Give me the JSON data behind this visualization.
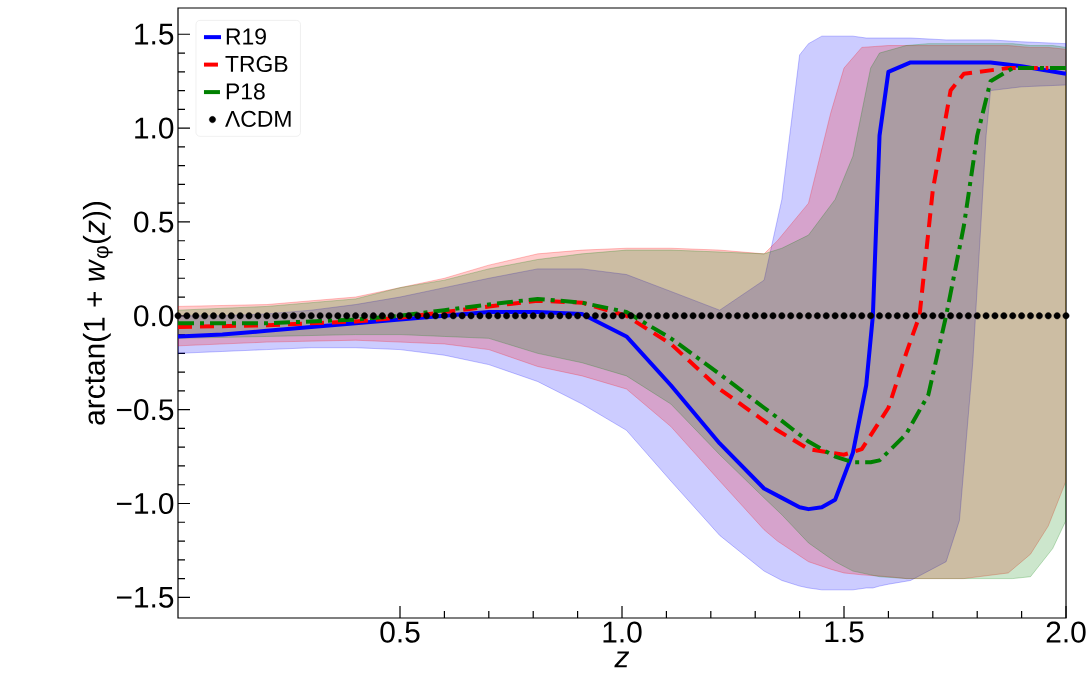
{
  "chart_data": {
    "type": "line",
    "xlabel": "z",
    "ylabel": "arctan(1 + *w*$_{φ}$(*z*))",
    "xlim": [
      0,
      2.0
    ],
    "ylim": [
      -1.61,
      1.64
    ],
    "xticks": [
      {
        "value": 0.5,
        "label": "0.5"
      },
      {
        "value": 1.0,
        "label": "1.0"
      },
      {
        "value": 1.5,
        "label": "1.5"
      },
      {
        "value": 2.0,
        "label": "2.0"
      }
    ],
    "yticks": [
      {
        "value": -1.5,
        "label": "−1.5"
      },
      {
        "value": -1.0,
        "label": "−1.0"
      },
      {
        "value": -0.5,
        "label": "−0.5"
      },
      {
        "value": 0.0,
        "label": "0.0"
      },
      {
        "value": 0.5,
        "label": "0.5"
      },
      {
        "value": 1.0,
        "label": "1.0"
      },
      {
        "value": 1.5,
        "label": "1.5"
      }
    ],
    "grid": false,
    "legend": "top left",
    "series": [
      {
        "name": "R19",
        "color": "#0000ff",
        "line_style": "solid",
        "x": [
          0,
          0.1,
          0.2,
          0.3,
          0.4,
          0.5,
          0.6,
          0.7,
          0.81,
          0.91,
          1.01,
          1.11,
          1.22,
          1.32,
          1.36,
          1.4,
          1.42,
          1.45,
          1.48,
          1.52,
          1.55,
          1.565,
          1.58,
          1.6,
          1.65,
          1.73,
          1.76,
          1.79,
          1.82,
          1.83,
          1.9,
          2.0
        ],
        "values": [
          -0.11,
          -0.1,
          -0.08,
          -0.06,
          -0.04,
          -0.02,
          0.0,
          0.02,
          0.02,
          0.01,
          -0.11,
          -0.37,
          -0.68,
          -0.92,
          -0.97,
          -1.02,
          -1.03,
          -1.02,
          -0.98,
          -0.73,
          -0.37,
          0.0,
          0.96,
          1.3,
          1.35,
          1.35,
          1.35,
          1.35,
          1.35,
          1.35,
          1.33,
          1.29
        ],
        "upper": [
          0.0,
          0.0,
          0.01,
          0.03,
          0.06,
          0.1,
          0.15,
          0.2,
          0.25,
          0.25,
          0.22,
          0.13,
          0.03,
          0.19,
          0.62,
          1.39,
          1.45,
          1.49,
          1.49,
          1.49,
          1.48,
          1.48,
          1.48,
          1.48,
          1.48,
          1.47,
          1.47,
          1.47,
          1.47,
          1.47,
          1.46,
          1.45
        ],
        "lower": [
          -0.2,
          -0.19,
          -0.18,
          -0.17,
          -0.17,
          -0.18,
          -0.21,
          -0.26,
          -0.35,
          -0.47,
          -0.61,
          -0.88,
          -1.17,
          -1.36,
          -1.41,
          -1.44,
          -1.45,
          -1.46,
          -1.46,
          -1.46,
          -1.45,
          -1.45,
          -1.44,
          -1.43,
          -1.41,
          -1.31,
          -1.09,
          -0.25,
          0.96,
          1.2,
          1.22,
          1.23
        ]
      },
      {
        "name": "TRGB",
        "color": "#ff0000",
        "line_style": "dashed",
        "x": [
          0,
          0.2,
          0.4,
          0.5,
          0.6,
          0.7,
          0.81,
          0.91,
          1.01,
          1.11,
          1.22,
          1.32,
          1.35,
          1.42,
          1.47,
          1.5,
          1.54,
          1.6,
          1.64,
          1.67,
          1.7,
          1.74,
          1.77,
          1.87,
          1.92,
          1.96,
          2.0
        ],
        "values": [
          -0.06,
          -0.05,
          -0.03,
          -0.01,
          0.02,
          0.05,
          0.08,
          0.07,
          0.0,
          -0.15,
          -0.39,
          -0.56,
          -0.61,
          -0.71,
          -0.73,
          -0.74,
          -0.71,
          -0.49,
          -0.2,
          0.0,
          0.67,
          1.2,
          1.29,
          1.32,
          1.32,
          1.32,
          null
        ],
        "upper": [
          0.05,
          0.06,
          0.1,
          0.15,
          0.2,
          0.27,
          0.33,
          0.35,
          0.36,
          0.36,
          0.35,
          0.33,
          0.4,
          0.6,
          1.08,
          1.32,
          1.43,
          1.44,
          1.44,
          1.44,
          1.44,
          1.44,
          1.44,
          1.44,
          1.43,
          1.43,
          1.42
        ],
        "lower": [
          -0.16,
          -0.14,
          -0.13,
          -0.14,
          -0.15,
          -0.18,
          -0.27,
          -0.32,
          -0.39,
          -0.59,
          -0.88,
          -1.14,
          -1.2,
          -1.31,
          -1.35,
          -1.37,
          -1.38,
          -1.39,
          -1.4,
          -1.4,
          -1.4,
          -1.4,
          -1.4,
          -1.37,
          -1.27,
          -1.12,
          -0.88
        ]
      },
      {
        "name": "P18",
        "color": "#008000",
        "line_style": "dashdot",
        "x": [
          0,
          0.2,
          0.4,
          0.5,
          0.6,
          0.7,
          0.81,
          0.91,
          1.01,
          1.11,
          1.22,
          1.32,
          1.36,
          1.42,
          1.48,
          1.52,
          1.56,
          1.58,
          1.64,
          1.69,
          1.73,
          1.77,
          1.8,
          1.83,
          1.88,
          1.92,
          1.97,
          2.0
        ],
        "values": [
          -0.04,
          -0.04,
          -0.02,
          0.0,
          0.03,
          0.06,
          0.09,
          0.07,
          0.02,
          -0.12,
          -0.31,
          -0.49,
          -0.56,
          -0.67,
          -0.75,
          -0.78,
          -0.78,
          -0.77,
          -0.63,
          -0.42,
          0.0,
          0.48,
          0.96,
          1.25,
          1.32,
          1.32,
          1.32,
          1.32
        ],
        "upper": [
          0.03,
          0.05,
          0.09,
          0.15,
          0.19,
          0.25,
          0.3,
          0.33,
          0.35,
          0.35,
          0.34,
          0.33,
          0.36,
          0.43,
          0.62,
          0.85,
          1.32,
          1.4,
          1.44,
          1.45,
          1.45,
          1.45,
          1.45,
          1.45,
          1.45,
          1.44,
          1.44,
          1.43
        ],
        "lower": [
          -0.12,
          -0.11,
          -0.1,
          -0.1,
          -0.11,
          -0.12,
          -0.2,
          -0.25,
          -0.32,
          -0.47,
          -0.74,
          -0.97,
          -1.06,
          -1.21,
          -1.31,
          -1.36,
          -1.38,
          -1.39,
          -1.4,
          -1.4,
          -1.4,
          -1.4,
          -1.4,
          -1.4,
          -1.4,
          -1.39,
          -1.24,
          -1.09
        ]
      },
      {
        "name": "ΛCDM",
        "type": "scatter",
        "marker": "circle",
        "color": "#000000",
        "x": [
          0,
          0.02,
          0.04,
          0.06,
          0.08,
          0.1,
          0.12,
          0.14,
          0.16,
          0.18,
          0.2,
          0.22,
          0.24,
          0.26,
          0.28,
          0.3,
          0.32,
          0.34,
          0.36,
          0.38,
          0.4,
          0.42,
          0.44,
          0.46,
          0.48,
          0.5,
          0.52,
          0.54,
          0.56,
          0.58,
          0.6,
          0.62,
          0.64,
          0.66,
          0.68,
          0.7,
          0.72,
          0.74,
          0.76,
          0.78,
          0.8,
          0.82,
          0.84,
          0.86,
          0.88,
          0.9,
          0.92,
          0.94,
          0.96,
          0.98,
          1.0,
          1.02,
          1.04,
          1.06,
          1.08,
          1.1,
          1.12,
          1.14,
          1.16,
          1.18,
          1.2,
          1.22,
          1.24,
          1.26,
          1.28,
          1.3,
          1.32,
          1.34,
          1.36,
          1.38,
          1.4,
          1.42,
          1.44,
          1.46,
          1.48,
          1.5,
          1.52,
          1.54,
          1.56,
          1.58,
          1.6,
          1.62,
          1.64,
          1.66,
          1.68,
          1.7,
          1.72,
          1.74,
          1.76,
          1.78,
          1.8,
          1.82,
          1.84,
          1.86,
          1.88,
          1.9,
          1.92,
          1.94,
          1.96,
          1.98,
          2.0
        ],
        "values": [
          0,
          0,
          0,
          0,
          0,
          0,
          0,
          0,
          0,
          0,
          0,
          0,
          0,
          0,
          0,
          0,
          0,
          0,
          0,
          0,
          0,
          0,
          0,
          0,
          0,
          0,
          0,
          0,
          0,
          0,
          0,
          0,
          0,
          0,
          0,
          0,
          0,
          0,
          0,
          0,
          0,
          0,
          0,
          0,
          0,
          0,
          0,
          0,
          0,
          0,
          0,
          0,
          0,
          0,
          0,
          0,
          0,
          0,
          0,
          0,
          0,
          0,
          0,
          0,
          0,
          0,
          0,
          0,
          0,
          0,
          0,
          0,
          0,
          0,
          0,
          0,
          0,
          0,
          0,
          0,
          0,
          0,
          0,
          0,
          0,
          0,
          0,
          0,
          0,
          0,
          0,
          0,
          0,
          0,
          0,
          0,
          0,
          0,
          0,
          0,
          0
        ]
      }
    ]
  }
}
